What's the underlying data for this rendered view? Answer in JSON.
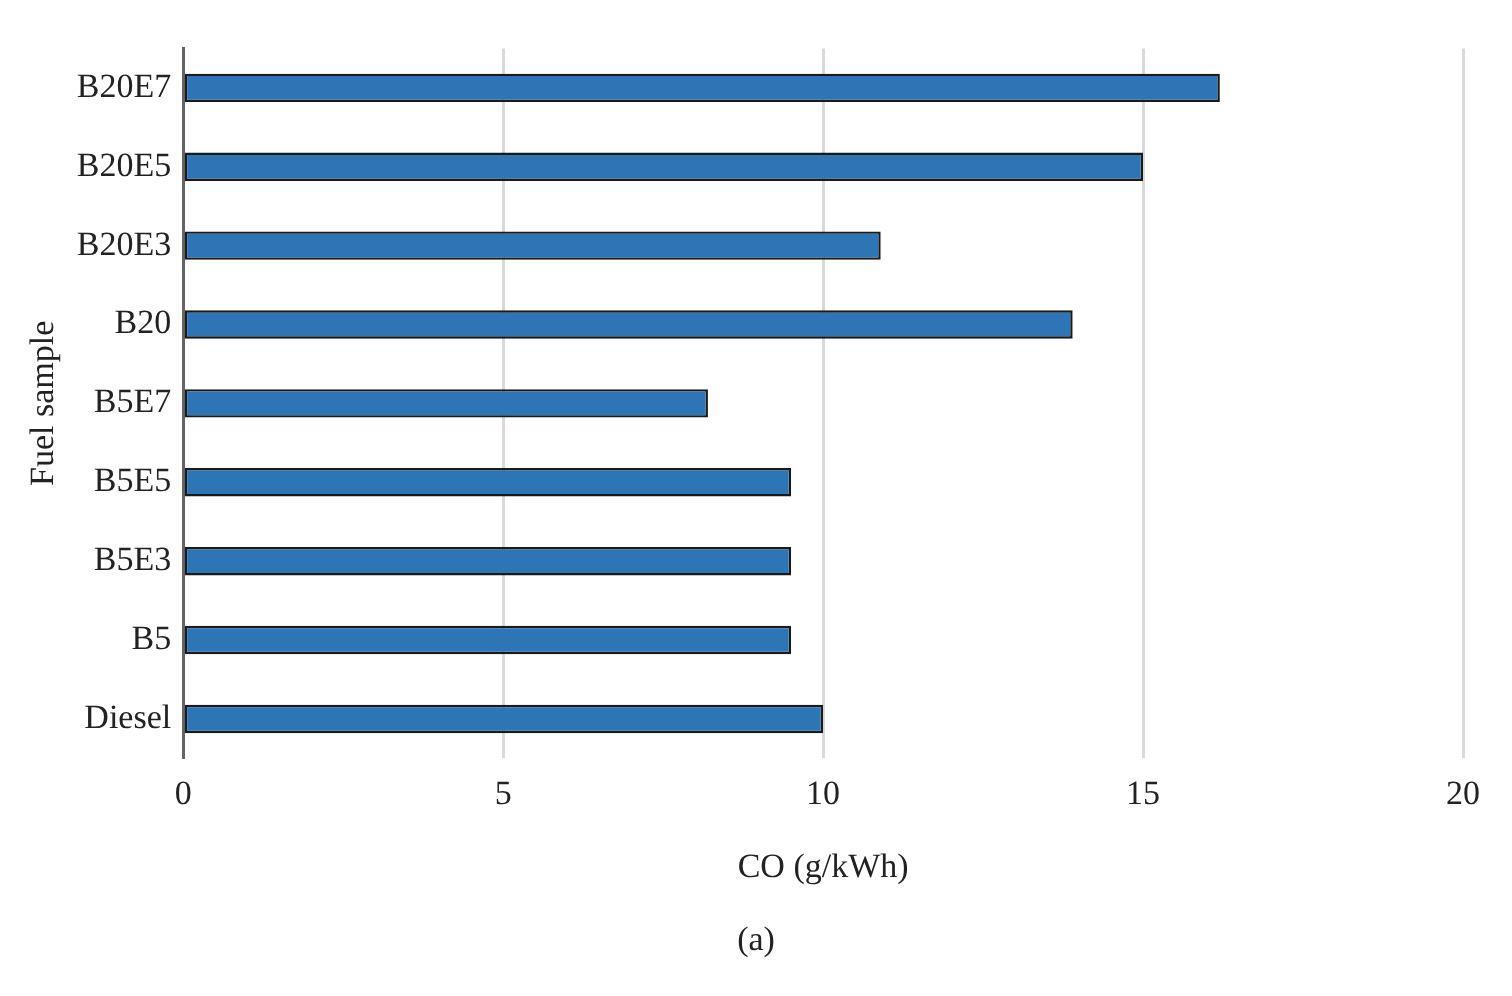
{
  "chart_data": {
    "type": "bar",
    "orientation": "horizontal",
    "xlabel": "CO (g/kWh)",
    "ylabel": "Fuel sample",
    "categories": [
      "B20E7",
      "B20E5",
      "B20E3",
      "B20",
      "B5E7",
      "B5E5",
      "B5E3",
      "B5",
      "Diesel"
    ],
    "values": [
      16.2,
      15.0,
      10.9,
      13.9,
      8.2,
      9.5,
      9.5,
      9.5,
      10.0
    ],
    "color": "#2e75b6",
    "xlim": [
      0,
      20
    ],
    "xticks": [
      0,
      5,
      10,
      15,
      20
    ],
    "grid": "x",
    "legend": false,
    "annotations": [
      "(a)"
    ]
  }
}
